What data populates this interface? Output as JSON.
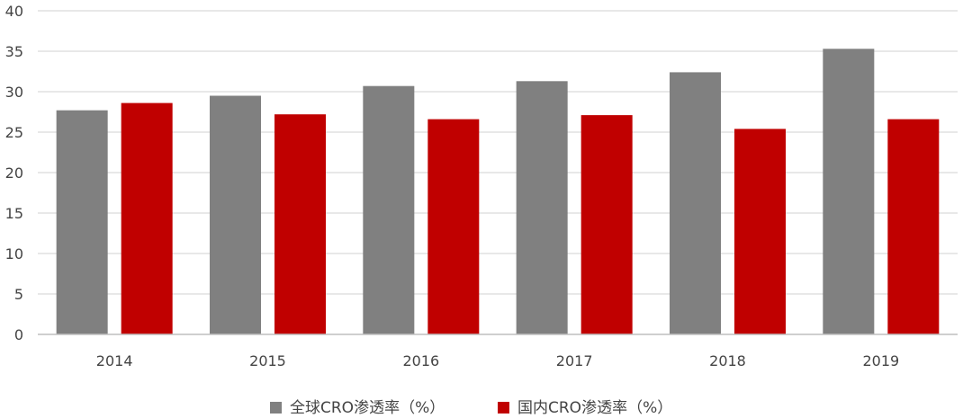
{
  "chart_data": {
    "type": "bar",
    "categories": [
      "2014",
      "2015",
      "2016",
      "2017",
      "2018",
      "2019"
    ],
    "series": [
      {
        "name": "全球CRO渗透率（%）",
        "color": "#808080",
        "values": [
          27.7,
          29.5,
          30.7,
          31.3,
          32.4,
          35.3
        ]
      },
      {
        "name": "国内CRO渗透率（%）",
        "color": "#C00000",
        "values": [
          28.6,
          27.2,
          26.6,
          27.1,
          25.4,
          26.6
        ]
      }
    ],
    "title": "",
    "xlabel": "",
    "ylabel": "",
    "ylim": [
      0,
      40
    ],
    "yticks": [
      "0",
      "5",
      "10",
      "15",
      "20",
      "25",
      "30",
      "35",
      "40"
    ],
    "grid": true,
    "legend_position": "bottom-center"
  }
}
